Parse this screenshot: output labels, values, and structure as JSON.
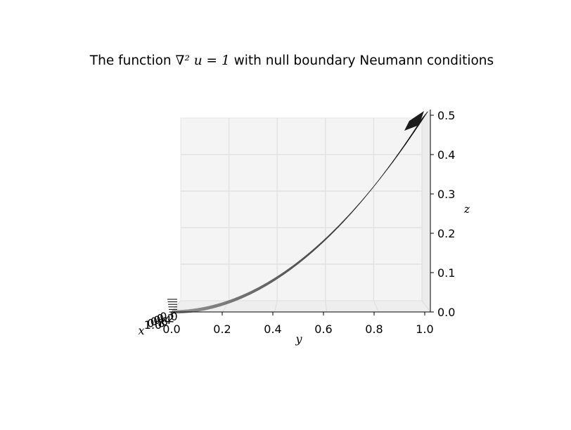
{
  "chart_data": {
    "type": "surface3d",
    "title": {
      "prefix": "The function ",
      "math": "∇² u = 1",
      "suffix": " with null boundary Neumann conditions"
    },
    "xlabel": "x",
    "ylabel": "y",
    "zlabel": "z",
    "y_ticks": [
      "0.0",
      "0.2",
      "0.4",
      "0.6",
      "0.8",
      "1.0"
    ],
    "z_ticks": [
      "0.0",
      "0.1",
      "0.2",
      "0.3",
      "0.4",
      "0.5"
    ],
    "x_ticks": [
      "0.0",
      "0.2",
      "0.4",
      "0.6",
      "0.8",
      "1.0"
    ],
    "ylim": [
      0,
      1
    ],
    "zlim": [
      0,
      0.5
    ],
    "surface": {
      "formula": "z = y^2 / 2",
      "y": [
        0,
        0.1,
        0.2,
        0.3,
        0.4,
        0.5,
        0.6,
        0.7,
        0.8,
        0.9,
        1.0
      ],
      "z": [
        0,
        0.005,
        0.02,
        0.045,
        0.08,
        0.125,
        0.18,
        0.245,
        0.32,
        0.405,
        0.5
      ]
    },
    "grid": true,
    "colormap": "gray"
  }
}
